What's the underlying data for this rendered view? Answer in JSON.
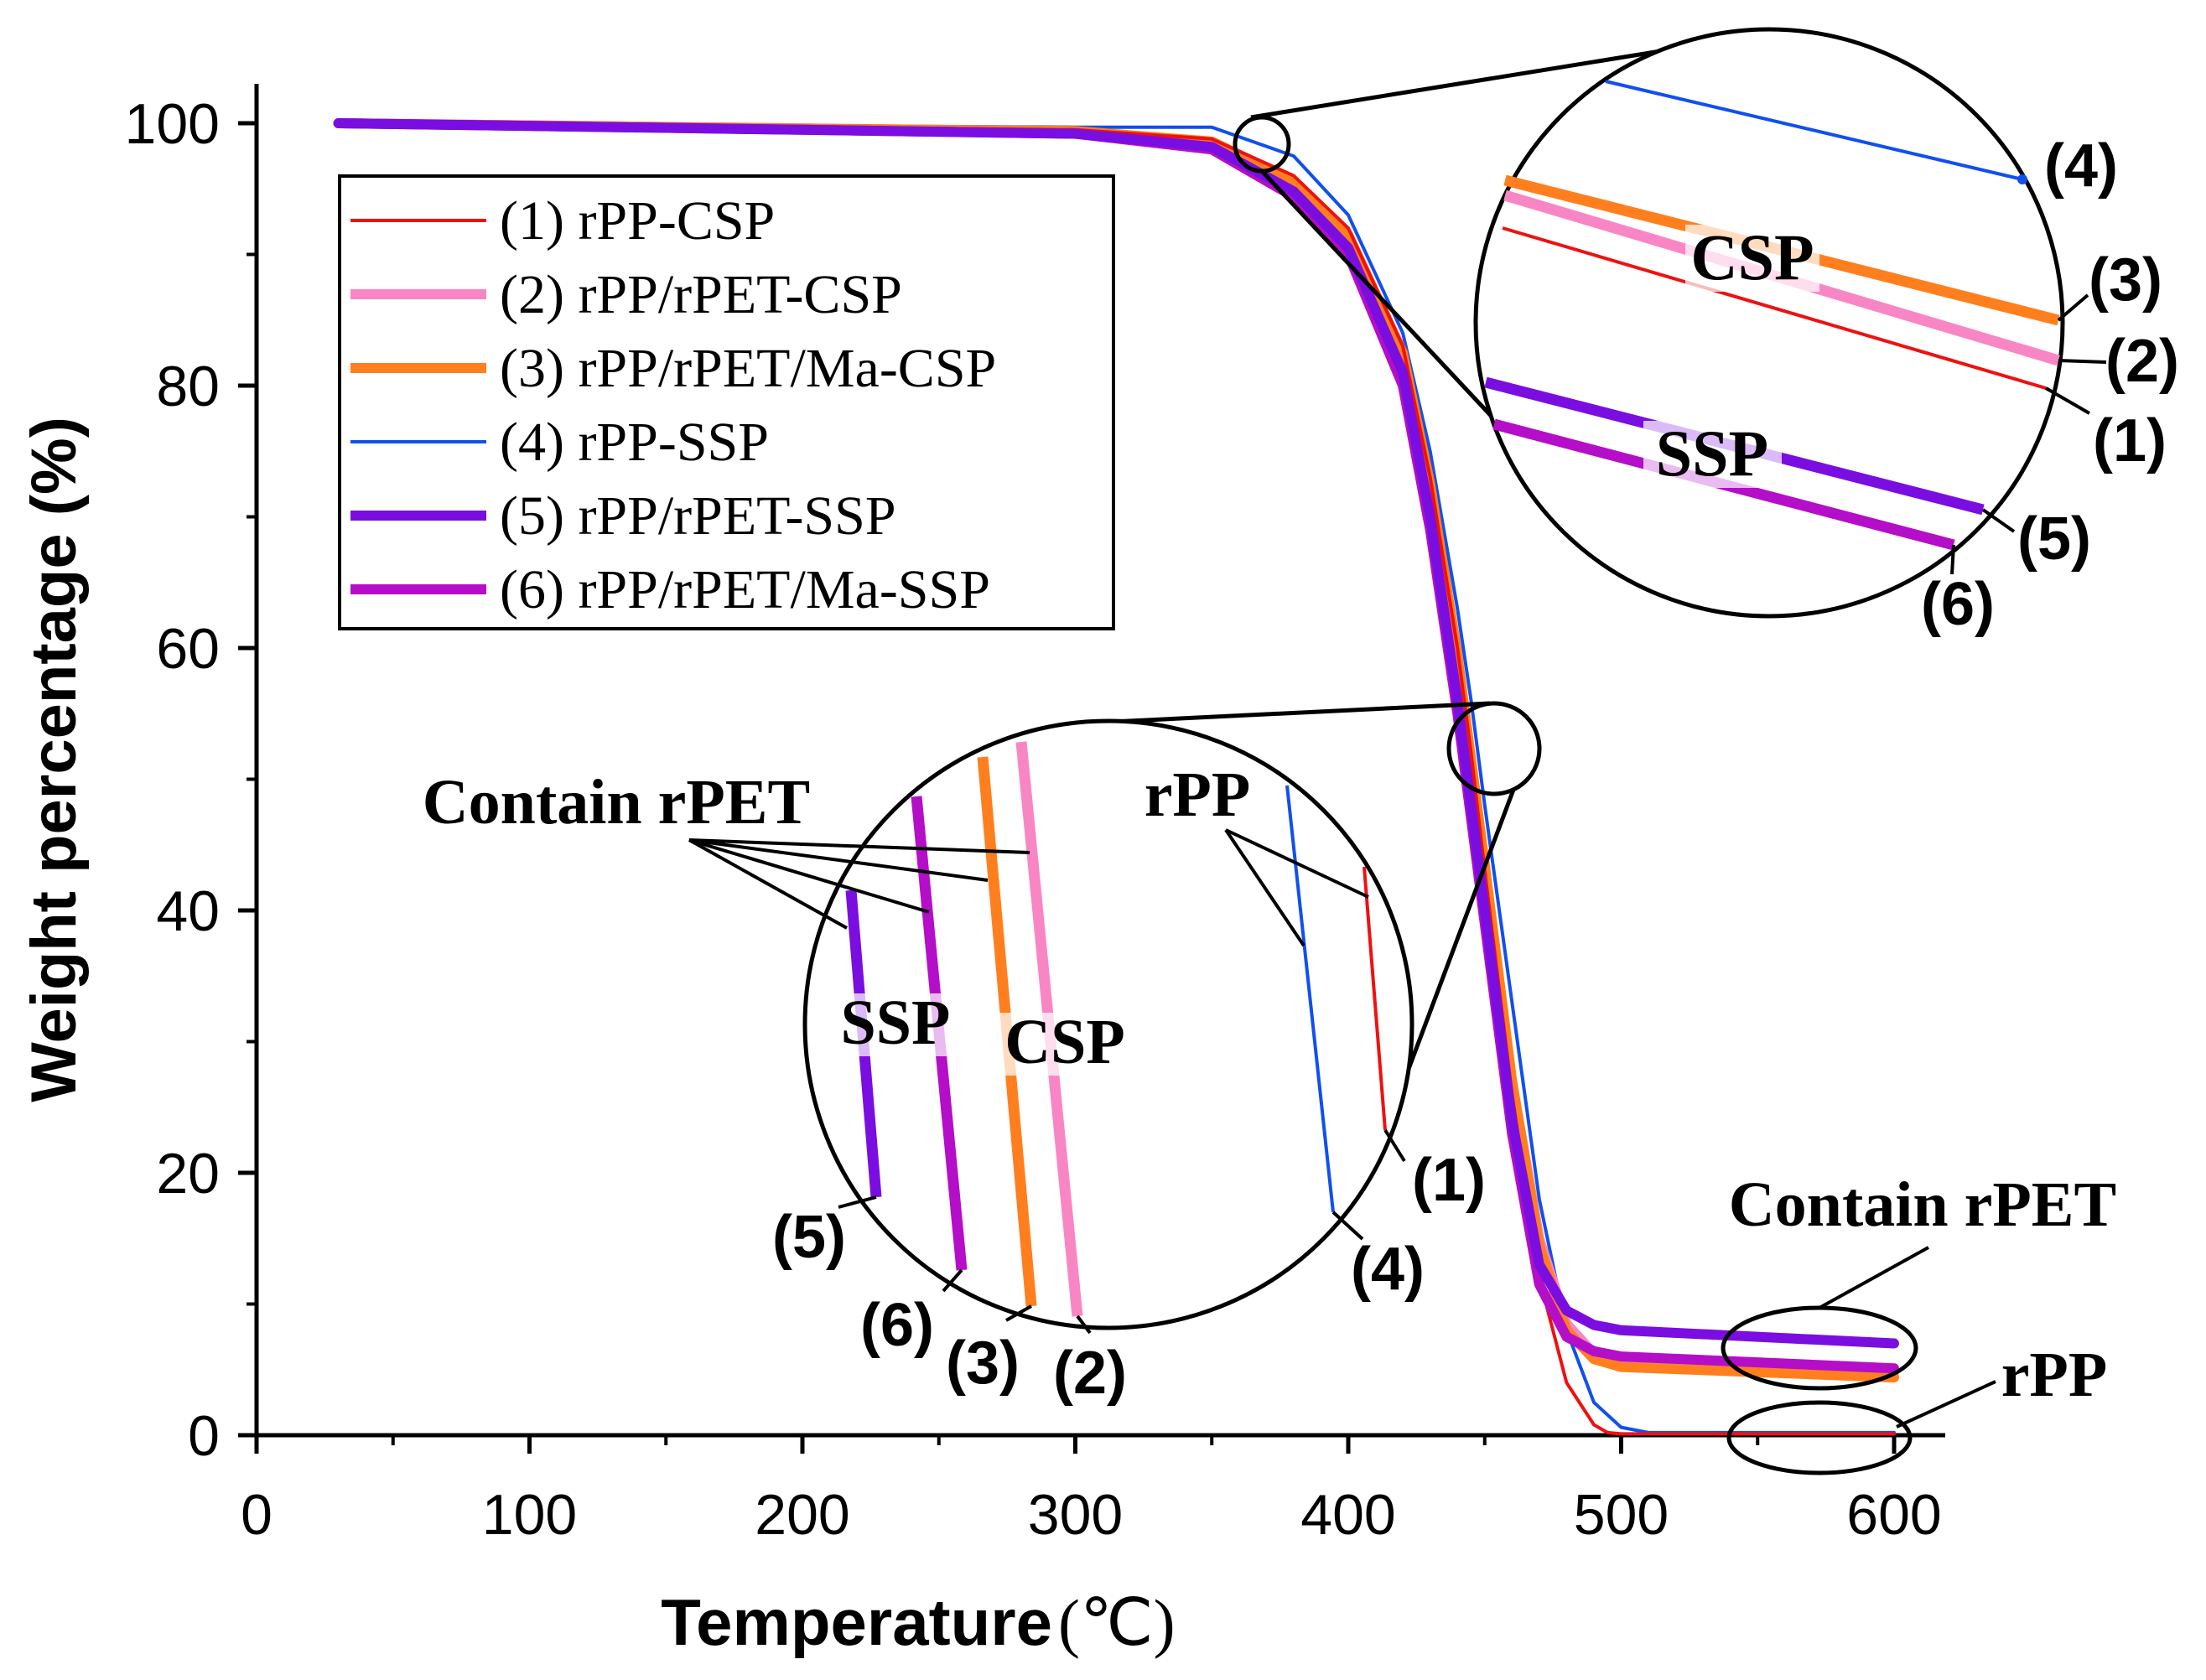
{
  "chart_data": {
    "type": "line",
    "xlabel": "Temperature",
    "xlabel_unit": "(℃)",
    "ylabel": "Weight percentage (%)",
    "xlim": [
      0,
      600
    ],
    "ylim": [
      0,
      100
    ],
    "xticks": [
      "0",
      "100",
      "200",
      "300",
      "400",
      "500",
      "600"
    ],
    "yticks": [
      "0",
      "20",
      "40",
      "60",
      "80",
      "100"
    ],
    "legend_position": "top-left",
    "series": [
      {
        "name": "(1) rPP-CSP",
        "color": "#ee1111",
        "x": [
          30,
          200,
          300,
          350,
          380,
          400,
          420,
          430,
          440,
          445,
          450,
          460,
          470,
          480,
          490,
          495,
          500,
          600
        ],
        "y": [
          100,
          99.7,
          99.5,
          98.8,
          96,
          92,
          83,
          73,
          60,
          52,
          43,
          26,
          12,
          4,
          0.8,
          0.2,
          0.1,
          0.1
        ]
      },
      {
        "name": "(2) rPP/rPET-CSP",
        "color": "#f986c4",
        "x": [
          30,
          200,
          300,
          350,
          380,
          400,
          420,
          430,
          440,
          445,
          450,
          460,
          470,
          480,
          490,
          500,
          600
        ],
        "y": [
          100,
          99.6,
          99.4,
          98.4,
          95.2,
          91,
          82,
          72,
          59,
          51,
          43,
          27,
          15,
          8.5,
          6.2,
          5.6,
          4.8
        ]
      },
      {
        "name": "(3) rPP/rPET/Ma-CSP",
        "color": "#ff7f1e",
        "x": [
          30,
          200,
          300,
          350,
          380,
          400,
          420,
          430,
          440,
          445,
          450,
          460,
          470,
          480,
          490,
          500,
          600
        ],
        "y": [
          100,
          99.6,
          99.4,
          98.6,
          95.6,
          91.5,
          82.5,
          72.5,
          59.5,
          51.5,
          43.5,
          27,
          14.5,
          8,
          5.8,
          5.2,
          4.4
        ]
      },
      {
        "name": "(4) rPP-SSP",
        "color": "#1150ee",
        "x": [
          30,
          200,
          300,
          350,
          380,
          400,
          420,
          430,
          440,
          445,
          450,
          460,
          470,
          480,
          490,
          500,
          510,
          600
        ],
        "y": [
          100,
          99.8,
          99.7,
          99.7,
          97.5,
          93,
          84,
          75,
          63,
          56,
          48,
          33,
          18,
          8,
          2.5,
          0.6,
          0.2,
          0.2
        ]
      },
      {
        "name": "(5) rPP/rPET-SSP",
        "color": "#7a0ee0",
        "x": [
          30,
          200,
          300,
          350,
          380,
          400,
          420,
          430,
          440,
          445,
          450,
          460,
          470,
          480,
          490,
          500,
          600
        ],
        "y": [
          100,
          99.5,
          99.2,
          98.2,
          94.8,
          90.5,
          81,
          70,
          56,
          48,
          40,
          24,
          13,
          9.5,
          8.4,
          8,
          7
        ]
      },
      {
        "name": "(6) rPP/rPET/Ma-SSP",
        "color": "#b40ec8",
        "x": [
          30,
          200,
          300,
          350,
          380,
          400,
          420,
          430,
          440,
          445,
          450,
          460,
          470,
          480,
          490,
          500,
          600
        ],
        "y": [
          100,
          99.5,
          99.2,
          98,
          94.4,
          90,
          80,
          69,
          55,
          47,
          39,
          23,
          11.5,
          7.5,
          6.4,
          6,
          5.1
        ]
      }
    ],
    "annotations": {
      "top_inset": {
        "csp": "CSP",
        "ssp": "SSP",
        "labels": [
          "(4)",
          "(3)",
          "(2)",
          "(1)",
          "(5)",
          "(6)"
        ]
      },
      "mid_inset": {
        "contain_rpet": "Contain rPET",
        "rpp": "rPP",
        "ssp": "SSP",
        "csp": "CSP",
        "labels": [
          "(1)",
          "(4)",
          "(5)",
          "(6)",
          "(3)",
          "(2)"
        ]
      },
      "residue_contain_rpet": "Contain rPET",
      "residue_rpp": "rPP"
    }
  }
}
